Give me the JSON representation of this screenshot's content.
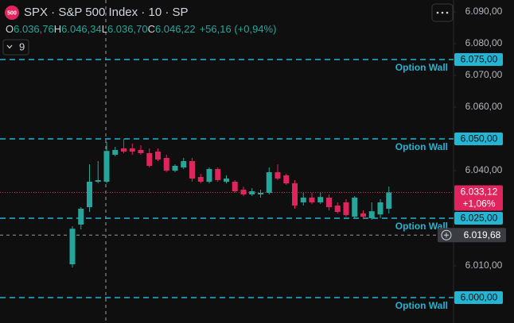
{
  "chart_data": {
    "type": "candlestick",
    "title": "SPX · S&P 500 Index · 10 · SP",
    "logo": "500",
    "ohlc_legend": {
      "items": [
        {
          "key": "O",
          "value": "6.036,76"
        },
        {
          "key": "H",
          "value": "6.046,34"
        },
        {
          "key": "L",
          "value": "6.036,70"
        },
        {
          "key": "C",
          "value": "6.046,22"
        }
      ],
      "change": "+56,16 (+0,94%)"
    },
    "indicator_count": 9,
    "up_color": "#26a69a",
    "down_color": "#e0245e",
    "open": [
      6010.5,
      6023,
      6028.5,
      6036.5,
      6036.5,
      6045,
      6047,
      6047,
      6046.5,
      6045.5,
      6046,
      6044,
      6040,
      6041,
      6043,
      6038,
      6036.5,
      6040.5,
      6036.5,
      6036.5,
      6034,
      6032.5,
      6032.5,
      6033,
      6039.5,
      6038.5,
      6036,
      6030,
      6031.5,
      6030,
      6031.5,
      6029,
      6030,
      6025.5,
      6026.5,
      6025,
      6026.2,
      6028
    ],
    "high": [
      6022.5,
      6028.5,
      6042,
      6043,
      6049,
      6047.5,
      6050,
      6048.5,
      6048,
      6047,
      6047,
      6045,
      6042,
      6044,
      6044,
      6039,
      6041,
      6041,
      6038.5,
      6037,
      6035,
      6034.5,
      6034,
      6041,
      6042,
      6039,
      6037,
      6033,
      6033,
      6033,
      6032.5,
      6030,
      6031,
      6032,
      6027.5,
      6030,
      6031,
      6035
    ],
    "low": [
      6009.5,
      6021.5,
      6027,
      6036,
      6036,
      6044.5,
      6045.5,
      6045,
      6045,
      6041,
      6043,
      6039.5,
      6039.5,
      6040.5,
      6036.5,
      6036,
      6036,
      6036.5,
      6036,
      6033,
      6032,
      6032,
      6031.5,
      6032.5,
      6037,
      6035.5,
      6028,
      6029,
      6029.5,
      6029.5,
      6027.5,
      6026.5,
      6025.5,
      6025,
      6025,
      6024.5,
      6025,
      6026.5
    ],
    "close": [
      6021.7,
      6028,
      6036.5,
      6037,
      6046.2,
      6046.5,
      6046,
      6046,
      6045.5,
      6041.5,
      6043.5,
      6040,
      6041.5,
      6043,
      6037.5,
      6036.5,
      6040.5,
      6037,
      6037.5,
      6033.5,
      6032.5,
      6033.5,
      6033,
      6039.5,
      6037.5,
      6036,
      6029,
      6031.5,
      6030,
      6031.7,
      6028.5,
      6027,
      6026,
      6031.5,
      6025.5,
      6027.2,
      6030,
      6033.12
    ],
    "ylim": [
      5992,
      6093.75
    ],
    "yticks": [
      {
        "value": 6000,
        "label": "6.000,00"
      },
      {
        "value": 6010,
        "label": "6.010,00"
      },
      {
        "value": 6020,
        "label": "6.020,00"
      },
      {
        "value": 6030,
        "label": "6.030,00"
      },
      {
        "value": 6040,
        "label": "6.040,00"
      },
      {
        "value": 6050,
        "label": "6.050,00"
      },
      {
        "value": 6060,
        "label": "6.060,00"
      },
      {
        "value": 6070,
        "label": "6.070,00"
      },
      {
        "value": 6080,
        "label": "6.080,00"
      },
      {
        "value": 6090,
        "label": "6.090,00"
      }
    ],
    "levels": [
      {
        "value": 6075,
        "label": "6.075,00",
        "name": "Option Wall"
      },
      {
        "value": 6050,
        "label": "6.050,00",
        "name": "Option Wall"
      },
      {
        "value": 6025,
        "label": "6.025,00",
        "name": "Option Wall"
      },
      {
        "value": 6000,
        "label": "6.000,00",
        "name": "Option Wall"
      }
    ],
    "level_color": "#22b5d4",
    "last_price": {
      "value": 6033.12,
      "label": "6.033,12",
      "change": "+1,06%"
    },
    "crosshair_price": {
      "value": 6019.68,
      "label": "6.019,68"
    }
  }
}
